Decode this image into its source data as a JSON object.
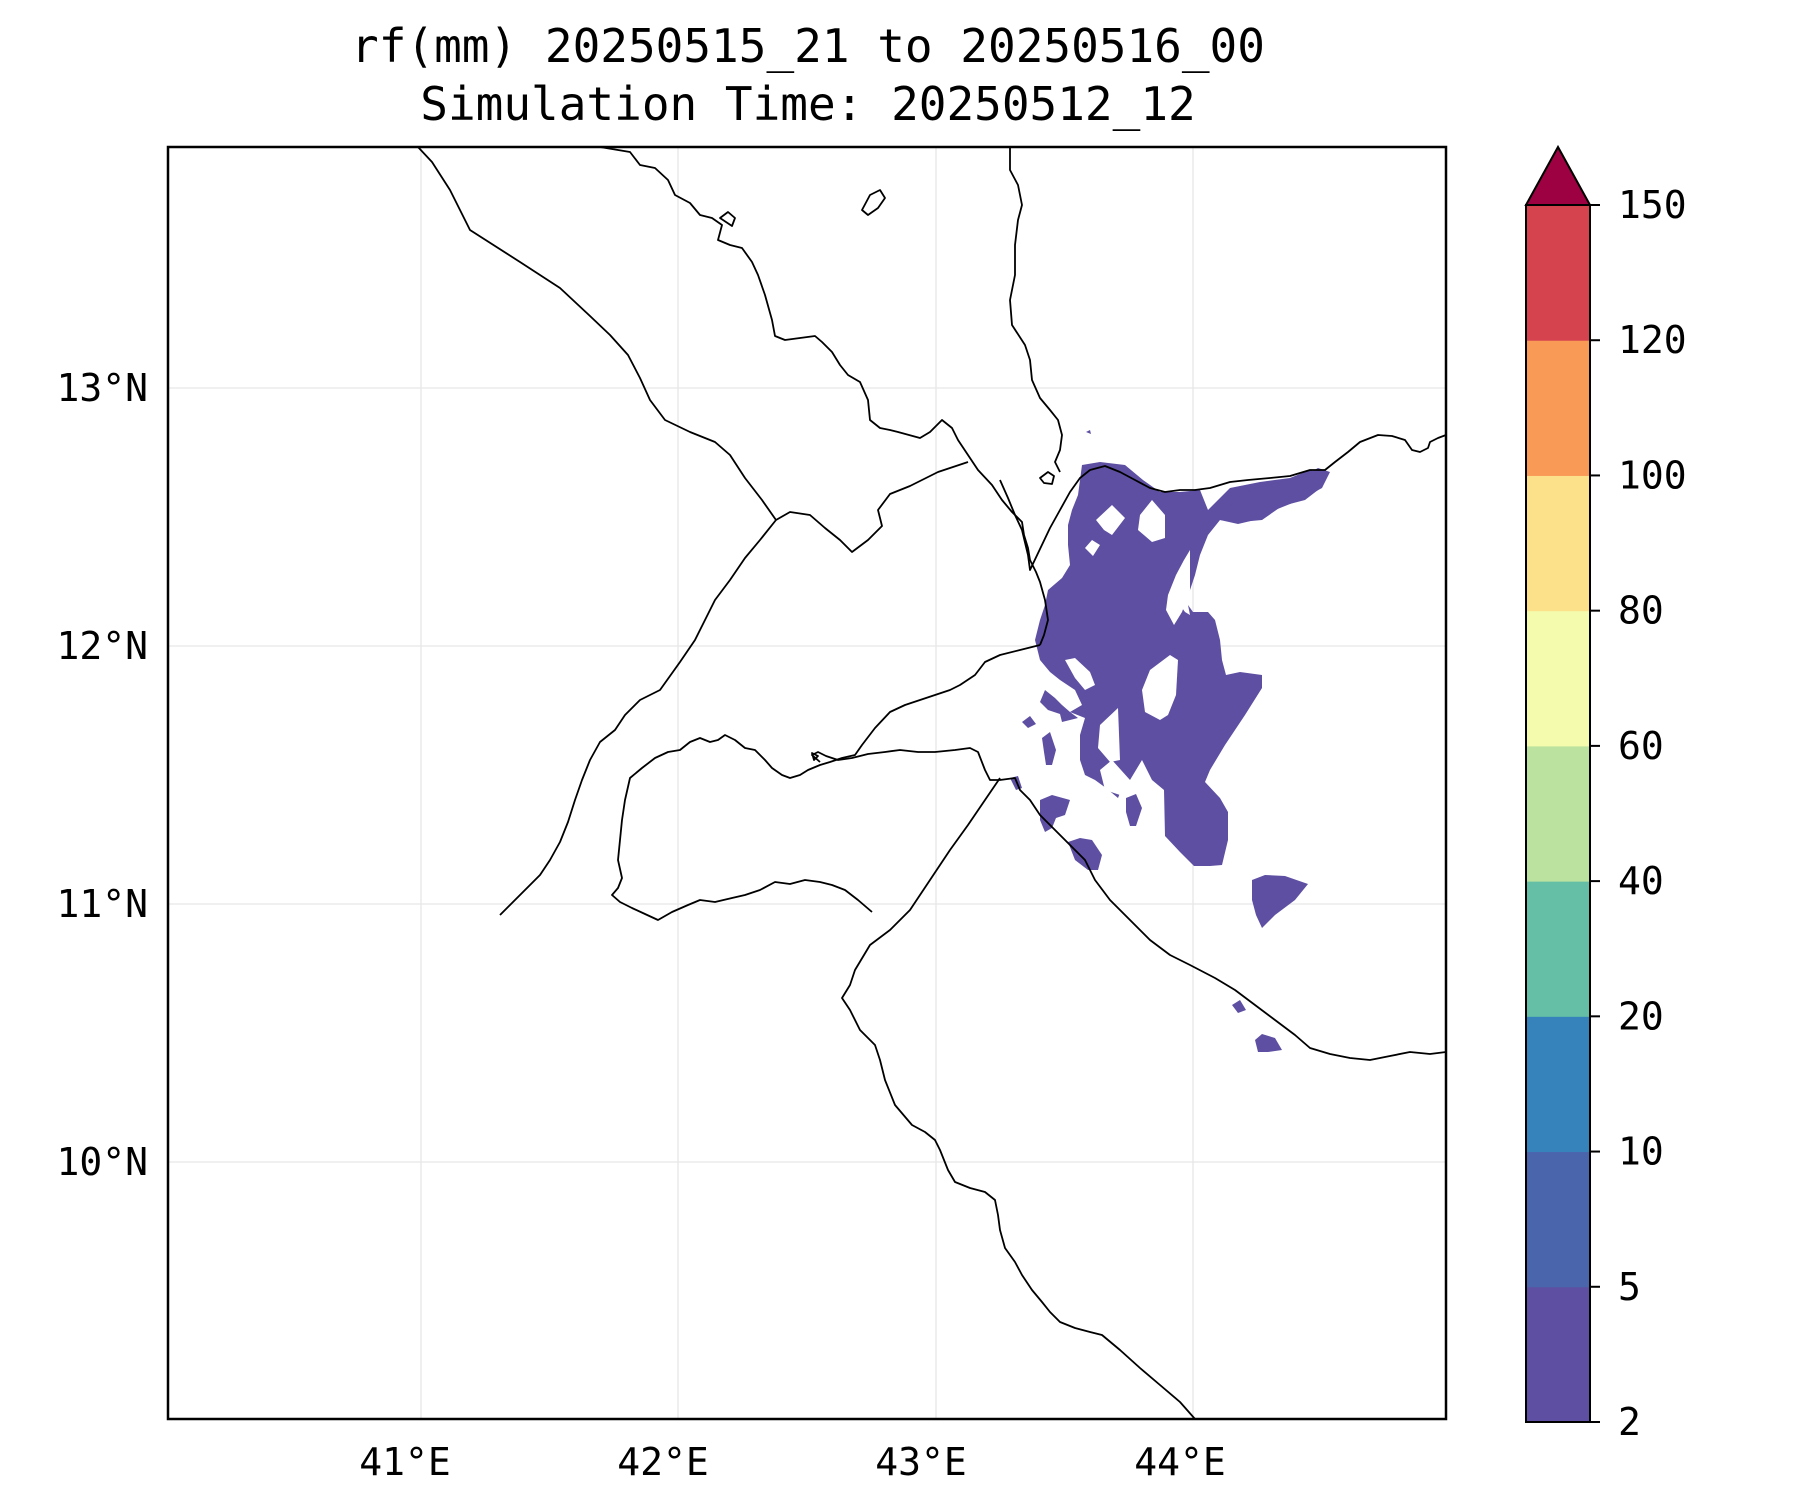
{
  "map": {
    "title_line1": "rf(mm) 20250515_21 to 20250516_00",
    "title_line2": "Simulation Time: 20250512_12",
    "lon_ticks": [
      "41°E",
      "42°E",
      "43°E",
      "44°E"
    ],
    "lat_ticks": [
      "13°N",
      "12°N",
      "11°N",
      "10°N"
    ],
    "grid": true
  },
  "colorbar": {
    "levels": [
      2,
      5,
      10,
      20,
      40,
      60,
      80,
      100,
      120,
      150
    ],
    "tick_labels": [
      "2",
      "5",
      "10",
      "20",
      "40",
      "60",
      "80",
      "100",
      "120",
      "150"
    ],
    "colors": [
      "#5e4fa2",
      "#4b65ad",
      "#3682ba",
      "#65bfa6",
      "#bbe39f",
      "#f5fbad",
      "#fde08a",
      "#f99b57",
      "#d5434f",
      "#9e0142"
    ],
    "extend": "max"
  },
  "colors": {
    "rain_2_5": "#5e4fa2",
    "coastline": "#000000",
    "gridline": "#e6e6e6"
  }
}
